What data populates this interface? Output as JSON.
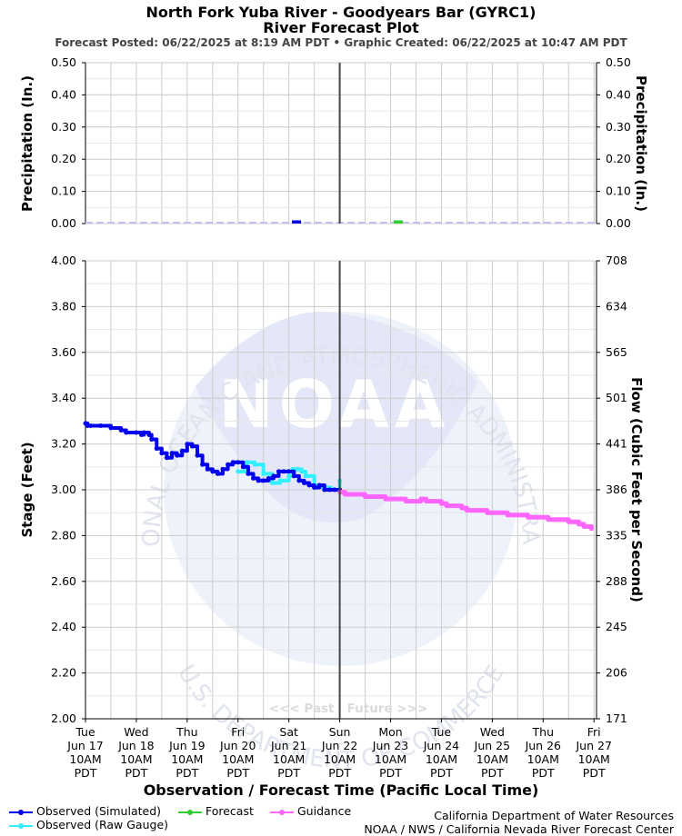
{
  "header": {
    "title_line1": "North Fork Yuba River - Goodyears Bar (GYRC1)",
    "title_line2": "River Forecast Plot",
    "forecast_posted": "Forecast Posted: 06/22/2025 at 8:19 AM PDT",
    "separator": "•",
    "graphic_created": "Graphic Created: 06/22/2025 at 10:47 AM PDT"
  },
  "watermark": {
    "arc_top": "NATIONAL OCEANIC AND ATMOSPHERIC ADMINISTRATION",
    "arc_bottom": "U.S. DEPARTMENT OF COMMERCE",
    "logo_text": "NOAA"
  },
  "past_future": "<<< Past   Future >>>",
  "x_axis": {
    "label": "Observation / Forecast Time (Pacific Local Time)",
    "ticks": [
      [
        "Tue",
        "Jun 17",
        "10AM",
        "PDT"
      ],
      [
        "Wed",
        "Jun 18",
        "10AM",
        "PDT"
      ],
      [
        "Thu",
        "Jun 19",
        "10AM",
        "PDT"
      ],
      [
        "Fri",
        "Jun 20",
        "10AM",
        "PDT"
      ],
      [
        "Sat",
        "Jun 21",
        "10AM",
        "PDT"
      ],
      [
        "Sun",
        "Jun 22",
        "10AM",
        "PDT"
      ],
      [
        "Mon",
        "Jun 23",
        "10AM",
        "PDT"
      ],
      [
        "Tue",
        "Jun 24",
        "10AM",
        "PDT"
      ],
      [
        "Wed",
        "Jun 25",
        "10AM",
        "PDT"
      ],
      [
        "Thu",
        "Jun 26",
        "10AM",
        "PDT"
      ],
      [
        "Fri",
        "Jun 27",
        "10AM",
        "PDT"
      ]
    ]
  },
  "legend": {
    "observed_simulated": "Observed (Simulated)",
    "observed_raw": "Observed (Raw Gauge)",
    "forecast": "Forecast",
    "guidance": "Guidance"
  },
  "credits": {
    "line1": "California Department of Water Resources",
    "line2": "NOAA / NWS / California Nevada River Forecast Center"
  },
  "colors": {
    "observed_simulated": "#0000ee",
    "observed_raw": "#33eeff",
    "forecast": "#33cc33",
    "guidance": "#ff66ff",
    "grid": "#cccccc",
    "now_line": "#444444",
    "watermark": "#e8ecf8"
  },
  "chart_data": [
    {
      "type": "bar",
      "panel": "precipitation",
      "ylabel_left": "Precipitation (In.)",
      "ylabel_right": "Precipitation (In.)",
      "ylim": [
        0,
        0.5
      ],
      "yticks": [
        "0.00",
        "0.10",
        "0.20",
        "0.30",
        "0.40",
        "0.50"
      ],
      "x_unit": "days since Jun 17 10AM PDT",
      "xlim": [
        0,
        10.05
      ],
      "series": [
        {
          "name": "Observed",
          "color": "#0000ee",
          "bars": [
            {
              "x": 4.15,
              "value": 0.01
            }
          ]
        },
        {
          "name": "Forecast",
          "color": "#33cc33",
          "bars": [
            {
              "x": 6.15,
              "value": 0.01
            }
          ]
        }
      ]
    },
    {
      "type": "line",
      "panel": "stage",
      "ylabel_left": "Stage (Feet)",
      "ylabel_right": "Flow (Cubic Feet per Second)",
      "ylim": [
        2.0,
        4.0
      ],
      "yticks": [
        "2.00",
        "2.20",
        "2.40",
        "2.60",
        "2.80",
        "3.00",
        "3.20",
        "3.40",
        "3.60",
        "3.80",
        "4.00"
      ],
      "yticks_right": [
        "171",
        "206",
        "245",
        "288",
        "335",
        "386",
        "441",
        "501",
        "565",
        "634",
        "708"
      ],
      "x_unit": "days since Jun 17 10AM PDT",
      "xlim": [
        0,
        10.05
      ],
      "now_x": 5.0,
      "series": [
        {
          "name": "Observed (Raw Gauge)",
          "color": "#33eeff",
          "x": [
            3.0,
            3.17,
            3.33,
            3.5,
            3.67,
            3.83,
            4.0,
            4.08,
            4.17,
            4.25,
            4.33,
            4.5,
            4.67,
            4.83,
            5.0
          ],
          "y": [
            3.08,
            3.12,
            3.11,
            3.07,
            3.03,
            3.04,
            3.06,
            3.09,
            3.09,
            3.08,
            3.06,
            3.02,
            3.01,
            3.0,
            3.04
          ]
        },
        {
          "name": "Observed (Simulated)",
          "color": "#0000ee",
          "x": [
            0.0,
            0.04,
            0.1,
            0.3,
            0.5,
            0.7,
            0.8,
            1.0,
            1.1,
            1.15,
            1.25,
            1.3,
            1.4,
            1.5,
            1.6,
            1.7,
            1.8,
            1.9,
            2.0,
            2.1,
            2.2,
            2.3,
            2.4,
            2.5,
            2.6,
            2.7,
            2.8,
            2.9,
            3.0,
            3.1,
            3.2,
            3.3,
            3.4,
            3.5,
            3.6,
            3.7,
            3.8,
            3.9,
            4.0,
            4.1,
            4.2,
            4.3,
            4.4,
            4.5,
            4.6,
            4.7,
            4.8,
            4.9,
            5.0
          ],
          "y": [
            3.29,
            3.28,
            3.28,
            3.28,
            3.27,
            3.26,
            3.25,
            3.25,
            3.24,
            3.25,
            3.24,
            3.22,
            3.18,
            3.16,
            3.14,
            3.16,
            3.15,
            3.17,
            3.2,
            3.19,
            3.15,
            3.11,
            3.09,
            3.08,
            3.07,
            3.09,
            3.11,
            3.12,
            3.12,
            3.1,
            3.07,
            3.05,
            3.04,
            3.04,
            3.05,
            3.06,
            3.08,
            3.08,
            3.08,
            3.06,
            3.04,
            3.03,
            3.02,
            3.01,
            3.02,
            3.0,
            3.0,
            3.0,
            3.0
          ]
        },
        {
          "name": "Guidance",
          "color": "#ff66ff",
          "x": [
            5.0,
            5.1,
            5.4,
            5.5,
            5.8,
            5.9,
            6.2,
            6.3,
            6.5,
            6.6,
            6.7,
            7.0,
            7.1,
            7.4,
            7.5,
            7.8,
            7.9,
            8.2,
            8.3,
            8.6,
            8.7,
            9.0,
            9.1,
            9.4,
            9.5,
            9.7,
            9.8,
            9.95
          ],
          "y": [
            2.99,
            2.98,
            2.98,
            2.97,
            2.97,
            2.96,
            2.96,
            2.95,
            2.95,
            2.96,
            2.95,
            2.94,
            2.93,
            2.92,
            2.91,
            2.91,
            2.9,
            2.9,
            2.89,
            2.89,
            2.88,
            2.88,
            2.87,
            2.87,
            2.86,
            2.85,
            2.84,
            2.83
          ]
        },
        {
          "name": "Forecast",
          "color": "#33cc33",
          "x": [],
          "y": []
        }
      ]
    }
  ]
}
